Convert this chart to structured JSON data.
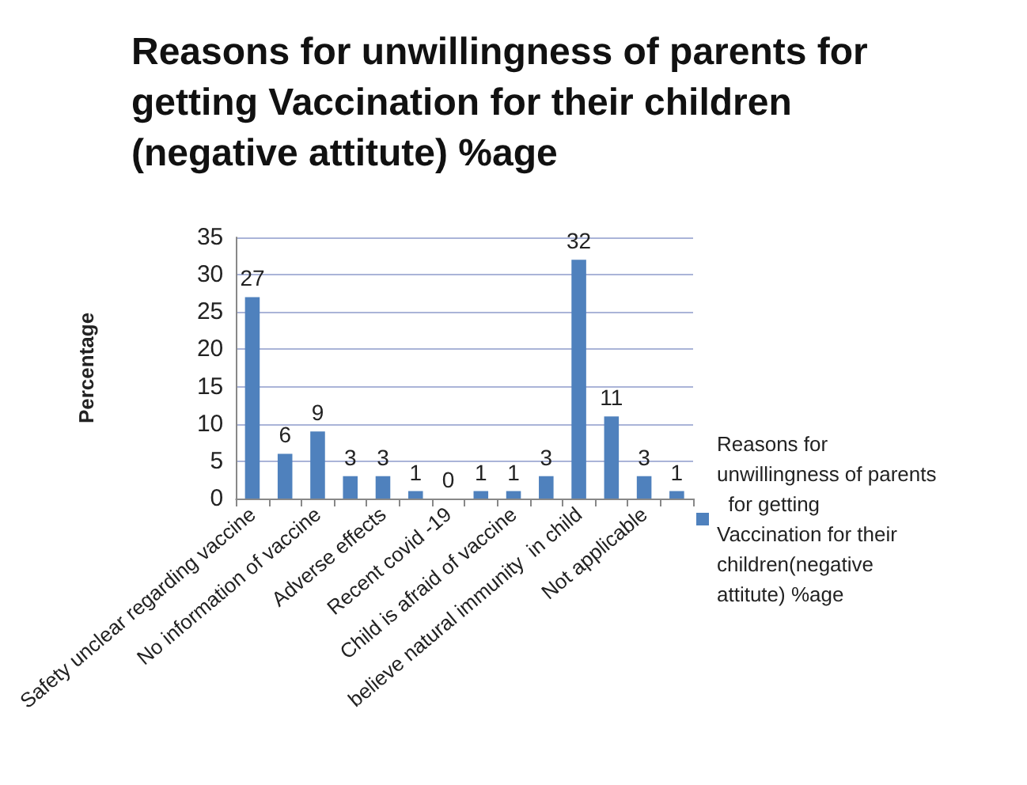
{
  "chart_data": {
    "type": "bar",
    "title": "Reasons for unwillingness of parents for getting Vaccination for their children (negative attitute) %age",
    "ylabel": "Percentage",
    "categories": [
      "Safety unclear regarding vaccine",
      null,
      "No information of vaccine",
      null,
      "Adverse effects",
      null,
      "Recent covid -19",
      null,
      "Child is afraid of vaccine",
      null,
      "believe natural immunity  in child",
      null,
      "Not applicable",
      null
    ],
    "series": [
      {
        "name": "Reasons for unwillingness of parents  for getting Vaccination for their children(negative attitute) %age",
        "color": "#4f81bd",
        "values": [
          27,
          6,
          9,
          3,
          3,
          1,
          0,
          1,
          1,
          3,
          32,
          11,
          3,
          1
        ]
      }
    ],
    "ylim": [
      0,
      35
    ],
    "yticks": [
      0,
      5,
      10,
      15,
      20,
      25,
      30,
      35
    ],
    "grid": "y",
    "legend": "right",
    "data_labels": true
  }
}
